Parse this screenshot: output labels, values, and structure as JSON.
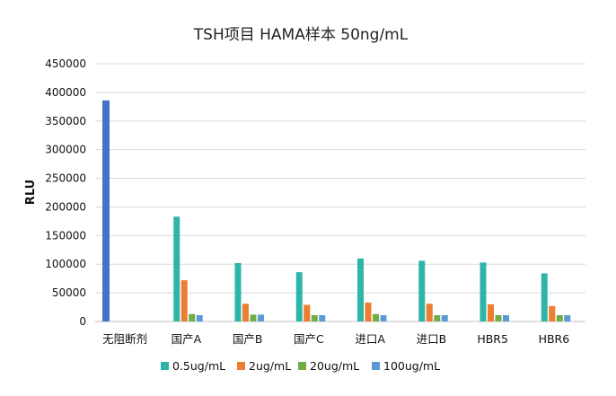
{
  "chart_data": {
    "type": "bar",
    "title": "TSH项目 HAMA样本   50ng/mL",
    "xlabel": "",
    "ylabel": "RLU",
    "ylim": [
      0,
      450000
    ],
    "yticks": [
      0,
      50000,
      100000,
      150000,
      200000,
      250000,
      300000,
      350000,
      400000,
      450000
    ],
    "ytick_labels": [
      "0",
      "50000",
      "100000",
      "150000",
      "200000",
      "250000",
      "300000",
      "350000",
      "400000",
      "450000"
    ],
    "grid": true,
    "legend_position": "bottom",
    "categories": [
      "无阻断剂",
      "国产A",
      "国产B",
      "国产C",
      "进口A",
      "进口B",
      "HBR5",
      "HBR6"
    ],
    "single_bar": {
      "category": "无阻断剂",
      "value": 386000,
      "color": "#4472C4"
    },
    "series": [
      {
        "name": "0.5ug/mL",
        "color": "#2EB5A8",
        "values": [
          null,
          183000,
          102000,
          86000,
          110000,
          106000,
          103000,
          84000
        ]
      },
      {
        "name": "2ug/mL",
        "color": "#ED7D31",
        "values": [
          null,
          72000,
          31000,
          29000,
          33000,
          31000,
          30000,
          27000
        ]
      },
      {
        "name": "20ug/mL",
        "color": "#70AD47",
        "values": [
          null,
          13000,
          12000,
          11000,
          13000,
          11000,
          11000,
          11000
        ]
      },
      {
        "name": "100ug/mL",
        "color": "#5B9BD5",
        "values": [
          null,
          11000,
          12000,
          11000,
          11000,
          11000,
          11000,
          11000
        ]
      }
    ]
  }
}
